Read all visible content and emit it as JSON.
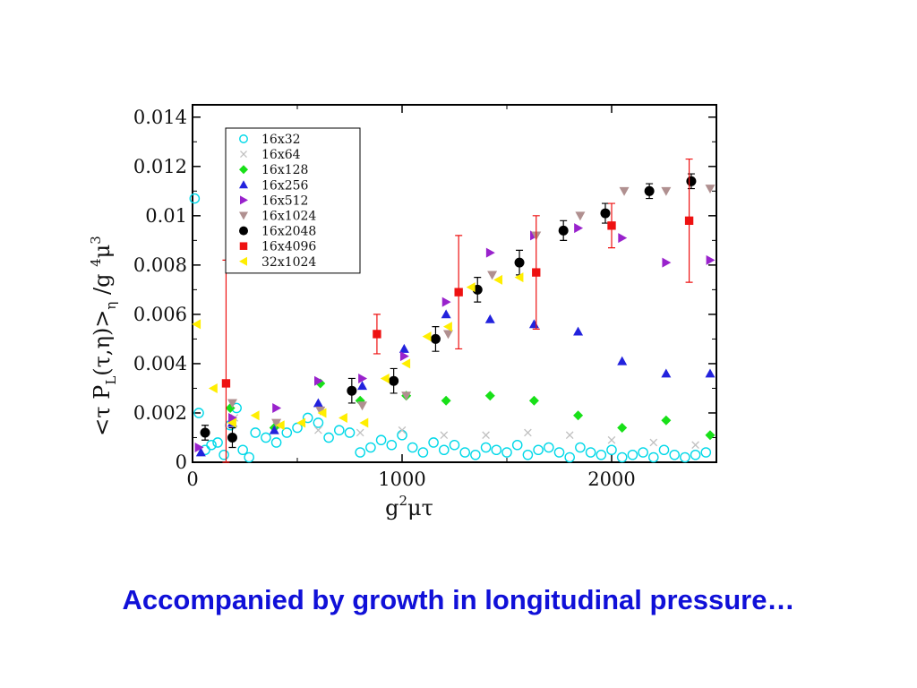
{
  "caption": "Accompanied by growth in longitudinal pressure…",
  "chart_data": {
    "type": "scatter",
    "title": "",
    "xlabel": "g²μτ",
    "ylabel": "<τ P_L(τ,η)>_η / g⁴μ³",
    "xlim": [
      0,
      2500
    ],
    "ylim": [
      0,
      0.0145
    ],
    "x_ticks": [
      "0",
      "1000",
      "2000"
    ],
    "x_tick_values": [
      0,
      1000,
      2000
    ],
    "y_ticks": [
      "0",
      "0.002",
      "0.004",
      "0.006",
      "0.008",
      "0.01",
      "0.012",
      "0.014"
    ],
    "y_tick_values": [
      0,
      0.002,
      0.004,
      0.006,
      0.008,
      0.01,
      0.012,
      0.014
    ],
    "legend_position": "top-left",
    "series": [
      {
        "name": "16x32",
        "marker": "circle-open",
        "color": "#00d8e8",
        "x": [
          10,
          30,
          60,
          90,
          120,
          150,
          180,
          210,
          240,
          270,
          300,
          350,
          400,
          450,
          500,
          550,
          600,
          650,
          700,
          750,
          800,
          850,
          900,
          950,
          1000,
          1050,
          1100,
          1150,
          1200,
          1250,
          1300,
          1350,
          1400,
          1450,
          1500,
          1550,
          1600,
          1650,
          1700,
          1750,
          1800,
          1850,
          1900,
          1950,
          2000,
          2050,
          2100,
          2150,
          2200,
          2250,
          2300,
          2350,
          2400,
          2450
        ],
        "y": [
          0.0107,
          0.002,
          0.0005,
          0.0007,
          0.0008,
          0.0003,
          0.0015,
          0.0022,
          0.0005,
          0.0002,
          0.0012,
          0.001,
          0.0008,
          0.0012,
          0.0014,
          0.0018,
          0.0016,
          0.001,
          0.0013,
          0.0012,
          0.0004,
          0.0006,
          0.0009,
          0.0007,
          0.0011,
          0.0006,
          0.0004,
          0.0008,
          0.0005,
          0.0007,
          0.0004,
          0.0003,
          0.0006,
          0.0005,
          0.0004,
          0.0007,
          0.0003,
          0.0005,
          0.0006,
          0.0004,
          0.0002,
          0.0006,
          0.0004,
          0.0003,
          0.0005,
          0.0002,
          0.0003,
          0.0004,
          0.0002,
          0.0005,
          0.0003,
          0.0002,
          0.0003,
          0.0004
        ]
      },
      {
        "name": "16x64",
        "marker": "x",
        "color": "#c0c0c0",
        "x": [
          200,
          400,
          600,
          800,
          1000,
          1200,
          1400,
          1600,
          1800,
          2000,
          2200,
          2400
        ],
        "y": [
          0.0018,
          0.0015,
          0.0013,
          0.0012,
          0.0013,
          0.0011,
          0.0011,
          0.0012,
          0.0011,
          0.0009,
          0.0008,
          0.0007
        ]
      },
      {
        "name": "16x128",
        "marker": "diamond",
        "color": "#18e018",
        "x": [
          180,
          390,
          610,
          800,
          1020,
          1210,
          1420,
          1630,
          1840,
          2050,
          2260,
          2470
        ],
        "y": [
          0.0022,
          0.0014,
          0.0032,
          0.0025,
          0.0027,
          0.0025,
          0.0027,
          0.0025,
          0.0019,
          0.0014,
          0.0017,
          0.0011
        ]
      },
      {
        "name": "16x256",
        "marker": "triangle-up",
        "color": "#2222dd",
        "x": [
          40,
          190,
          390,
          600,
          810,
          1010,
          1210,
          1420,
          1630,
          1840,
          2050,
          2260,
          2470
        ],
        "y": [
          0.0004,
          0.0016,
          0.0013,
          0.0024,
          0.0031,
          0.0046,
          0.006,
          0.0058,
          0.0056,
          0.0053,
          0.0041,
          0.0036,
          0.0036
        ]
      },
      {
        "name": "16x512",
        "marker": "triangle-right",
        "color": "#9922cc",
        "x": [
          30,
          190,
          400,
          600,
          810,
          1010,
          1210,
          1420,
          1630,
          1840,
          2050,
          2260,
          2470
        ],
        "y": [
          0.0006,
          0.0018,
          0.0022,
          0.0033,
          0.0034,
          0.0043,
          0.0065,
          0.0085,
          0.0092,
          0.0095,
          0.0091,
          0.0081,
          0.0082
        ]
      },
      {
        "name": "16x1024",
        "marker": "triangle-down",
        "color": "#b09090",
        "x": [
          190,
          400,
          610,
          810,
          1020,
          1220,
          1430,
          1640,
          1850,
          2060,
          2260,
          2470
        ],
        "y": [
          0.0024,
          0.0016,
          0.0021,
          0.0023,
          0.0027,
          0.0052,
          0.0076,
          0.0092,
          0.01,
          0.011,
          0.011,
          0.0111
        ]
      },
      {
        "name": "16x2048",
        "marker": "circle",
        "color": "#000000",
        "x": [
          60,
          190,
          760,
          960,
          1160,
          1360,
          1560,
          1770,
          1970,
          2180,
          2380
        ],
        "y": [
          0.0012,
          0.001,
          0.0029,
          0.0033,
          0.005,
          0.007,
          0.0081,
          0.0094,
          0.0101,
          0.011,
          0.0114
        ],
        "err": [
          0.0003,
          0.0004,
          0.0005,
          0.0005,
          0.0005,
          0.0005,
          0.0005,
          0.0004,
          0.0004,
          0.0003,
          0.0003
        ]
      },
      {
        "name": "16x4096",
        "marker": "square",
        "color": "#ee1111",
        "x": [
          160,
          880,
          1270,
          1640,
          2000,
          2370
        ],
        "y": [
          0.0032,
          0.0052,
          0.0069,
          0.0077,
          0.0096,
          0.0098
        ],
        "err": [
          0.005,
          0.0008,
          0.0023,
          0.0023,
          0.0009,
          0.0025
        ]
      },
      {
        "name": "32x1024",
        "marker": "triangle-left",
        "color": "#ffee00",
        "x": [
          20,
          100,
          190,
          300,
          420,
          520,
          620,
          720,
          820,
          920,
          1020,
          1120,
          1220,
          1330,
          1460,
          1560
        ],
        "y": [
          0.0056,
          0.003,
          0.0016,
          0.0019,
          0.0015,
          0.0016,
          0.002,
          0.0018,
          0.0016,
          0.0034,
          0.004,
          0.0051,
          0.0055,
          0.0071,
          0.0074,
          0.0075
        ]
      }
    ]
  }
}
